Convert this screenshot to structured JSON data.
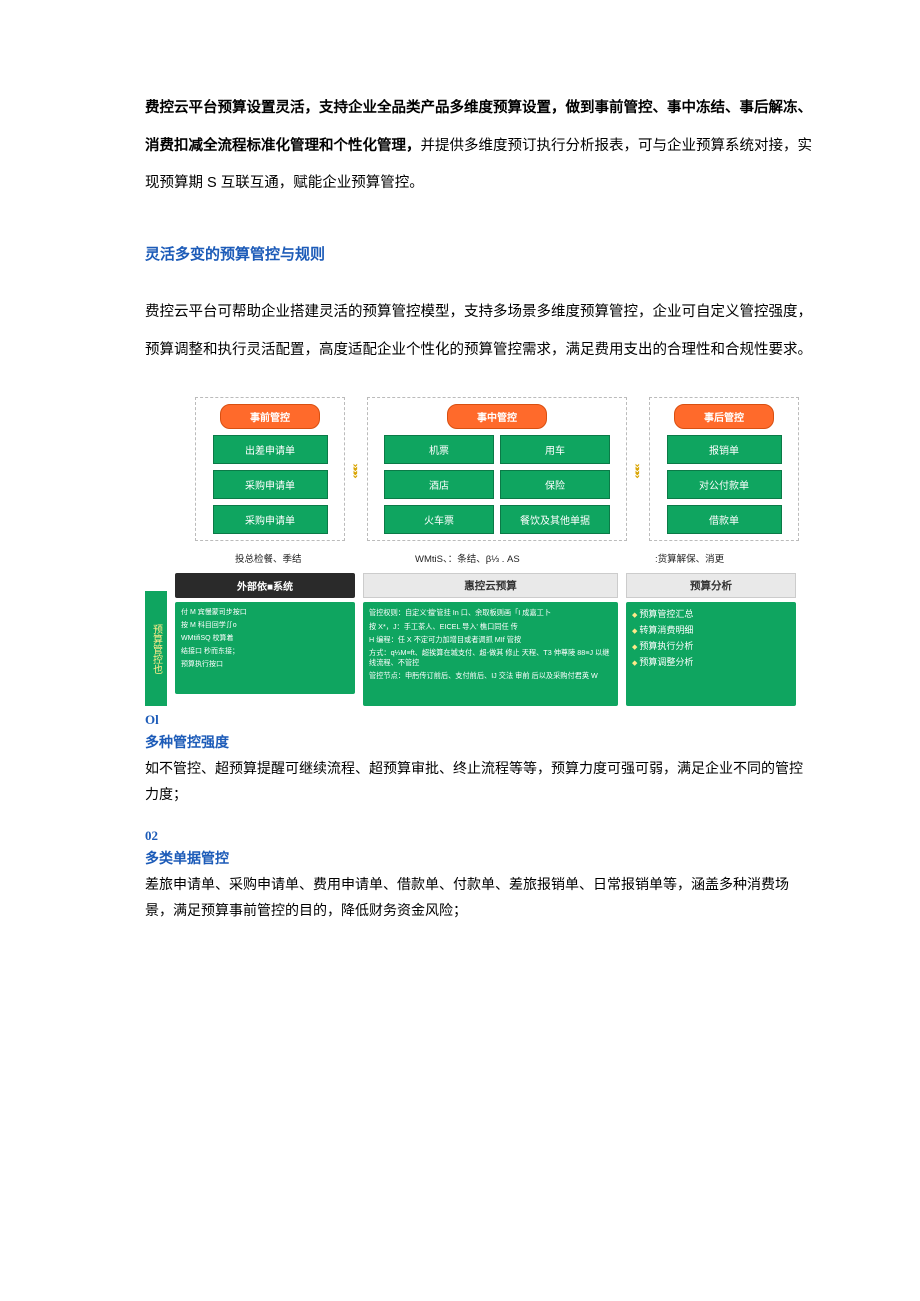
{
  "colors": {
    "accent_blue": "#1c5bb8",
    "pill_orange": "#ff6a2b",
    "box_green": "#0fa560",
    "head_dark": "#2a2a2a",
    "head_gray": "#e9e9e9"
  },
  "intro": {
    "bold1": "费控云平台预算设置灵活，支持企业全品类产品多维度预算设置，做到事前管控、事中冻结、事后解冻、消费扣减全流程标准化管理和个性化管理，",
    "rest": "并提供多维度预订执行分析报表，可与企业预算系统对接，实现预算期 S 互联互通，赋能企业预算管控。"
  },
  "section1": {
    "title": "灵活多变的预算管控与规则",
    "text": "费控云平台可帮助企业搭建灵活的预算管控模型，支持多场景多维度预算管控，企业可自定义管控强度，预算调整和执行灵活配置，高度适配企业个性化的预算管控需求，满足费用支出的合理性和合规性要求。"
  },
  "dia1": {
    "groups": [
      {
        "head": "事前管控",
        "items": [
          "出差申请单",
          "采购申请单",
          "采购申请单"
        ]
      },
      {
        "head": "事中管控",
        "items": [
          "机票",
          "用车",
          "酒店",
          "保险",
          "火车票",
          "餐饮及其他单据"
        ]
      },
      {
        "head": "事后管控",
        "items": [
          "报销单",
          "对公付款单",
          "借款单"
        ]
      }
    ],
    "arrow": "»»»",
    "captions": [
      "投总检餐、季结",
      "WMtiS、：条结、β⅓ . AS",
      ":货算解保、消更"
    ]
  },
  "dia2": {
    "vlabel": "预算管控也",
    "col1": {
      "head": "外部依■系统",
      "lines": [
        "付 M 宾慢蒙司步按口",
        "按 M 科目回学∬o",
        "WMtifiSQ 校算着",
        "结接口 秒而东接；",
        "预算执行按口"
      ]
    },
    "col2": {
      "head": "惠控云预算",
      "lines": [
        "管控权则：自定义'擅'管挂 In 口、余取板则画「I 成嘉工卜",
        "按 X*，J：手工茶人、EICEL 导入' 樵口同任 传",
        "H 编程：任 X 不定可力加增目或者调抓 MIf 管按",
        "方式：q⅓M≡ft、超挨算在城支付、超-做其 修止 天程、T3 伸尊陵 88≡J 以继线流程、不管控",
        "管控节点：申肟传订前后、支付前后、IJ 交法 审前 后以及采购付君英 W"
      ]
    },
    "col3": {
      "head": "预算分析",
      "lines": [
        "预算管控汇总",
        "转算消费明细",
        "预算执行分析",
        "预算调整分析"
      ]
    }
  },
  "features": [
    {
      "num": "Ol",
      "title": "多种管控强度",
      "text": "如不管控、超预算提醒可继续流程、超预算审批、终止流程等等，预算力度可强可弱，满足企业不同的管控力度；"
    },
    {
      "num": "02",
      "title": "多类单据管控",
      "text": "差旅申请单、采购申请单、费用申请单、借款单、付款单、差旅报销单、日常报销单等，涵盖多种消费场景，满足预算事前管控的目的，降低财务资金风险；"
    }
  ]
}
